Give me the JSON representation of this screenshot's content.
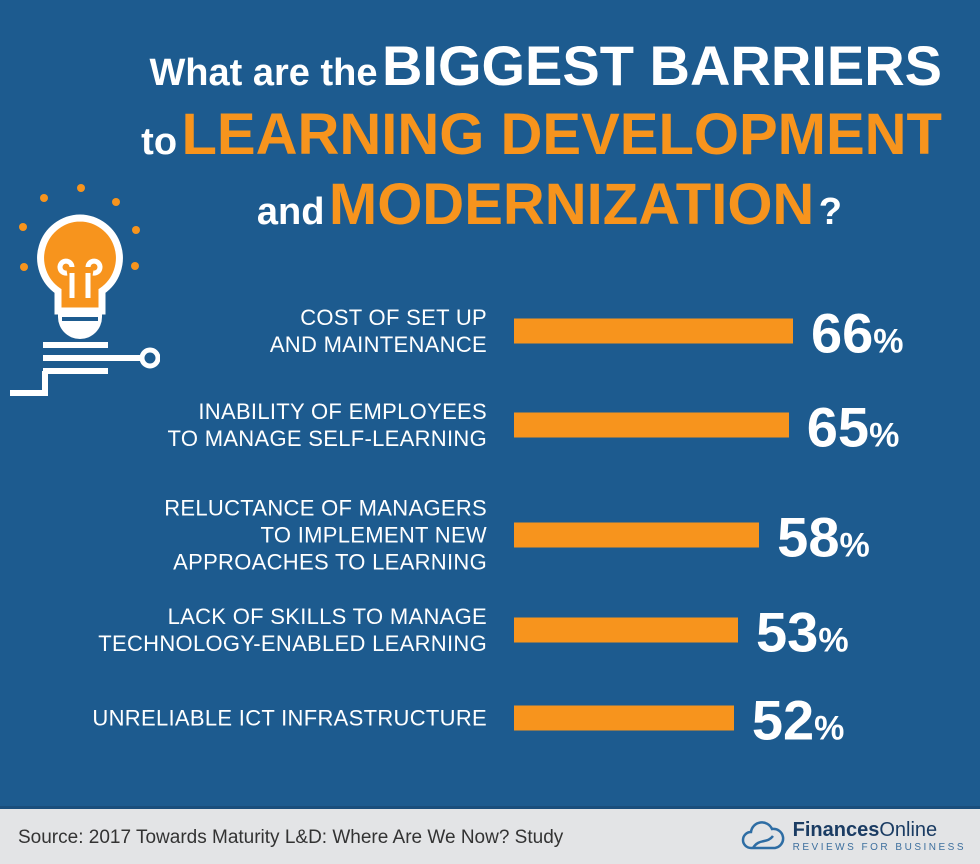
{
  "title": {
    "line1_a": "What are the",
    "line1_b": "BIGGEST BARRIERS",
    "line2_a": "to",
    "line2_b": "LEARNING DEVELOPMENT",
    "line3_a": "and",
    "line3_b": "MODERNIZATION",
    "line3_c": "?"
  },
  "chart_data": {
    "type": "bar",
    "orientation": "horizontal",
    "title": "What are the BIGGEST BARRIERS to LEARNING DEVELOPMENT and MODERNIZATION?",
    "categories": [
      "COST OF SET UP AND MAINTENANCE",
      "INABILITY OF EMPLOYEES TO MANAGE SELF-LEARNING",
      "RELUCTANCE OF MANAGERS TO IMPLEMENT NEW APPROACHES TO LEARNING",
      "LACK OF SKILLS TO MANAGE TECHNOLOGY-ENABLED LEARNING",
      "UNRELIABLE ICT INFRASTRUCTURE"
    ],
    "labels": [
      [
        "COST OF SET UP",
        "AND MAINTENANCE"
      ],
      [
        "INABILITY OF EMPLOYEES",
        "TO MANAGE SELF-LEARNING"
      ],
      [
        "RELUCTANCE OF MANAGERS",
        "TO IMPLEMENT NEW",
        "APPROACHES TO LEARNING"
      ],
      [
        "LACK OF SKILLS TO MANAGE",
        "TECHNOLOGY-ENABLED LEARNING"
      ],
      [
        "UNRELIABLE ICT INFRASTRUCTURE"
      ]
    ],
    "values": [
      66,
      65,
      58,
      53,
      52
    ],
    "unit": "%",
    "bar_color": "#f7941d",
    "xlim": [
      0,
      66
    ]
  },
  "footer": {
    "source": "Source: 2017 Towards Maturity L&D: Where Are We Now? Study",
    "logo_bold": "Finances",
    "logo_light": "Online",
    "logo_tag": "REVIEWS FOR BUSINESS"
  }
}
